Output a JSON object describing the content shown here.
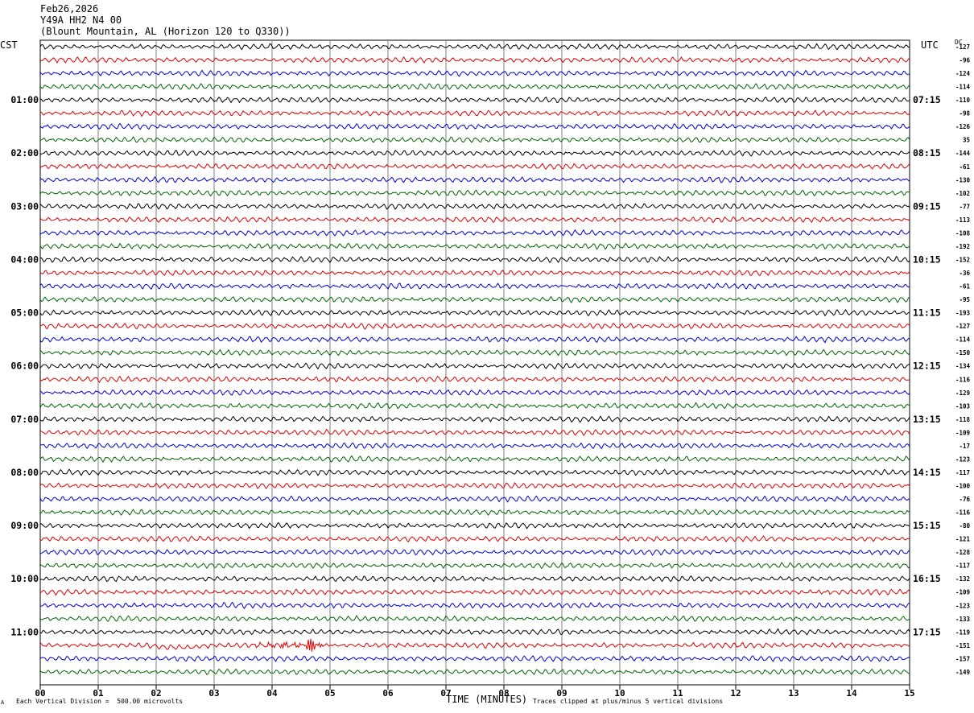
{
  "header": {
    "date": "Feb26,2026",
    "station": "Y49A HH2 N4 00",
    "location": "(Blount Mountain, AL (Horizon 120 to Q330))"
  },
  "left_tz": "CST",
  "right_tz": "UTC",
  "dc_label": "DC",
  "footer": {
    "scale": "Each Vertical Division =  500.00 microvolts",
    "xlabel": "TIME (MINUTES)",
    "clip": "Traces clipped at plus/minus 5 vertical divisions",
    "corner_mark": "A"
  },
  "colors": {
    "trace_cycle": [
      "#000000",
      "#dd0000",
      "#0000cc",
      "#006600"
    ],
    "grid": "#808080"
  },
  "chart_data": {
    "type": "line",
    "title": "",
    "xlabel": "TIME (MINUTES)",
    "xlim": [
      0,
      15
    ],
    "x_ticks": [
      "00",
      "01",
      "02",
      "03",
      "04",
      "05",
      "06",
      "07",
      "08",
      "09",
      "10",
      "11",
      "12",
      "13",
      "14",
      "15"
    ],
    "row_count": 48,
    "left_hour_labels": [
      "01:00",
      "02:00",
      "03:00",
      "04:00",
      "05:00",
      "06:00",
      "07:00",
      "08:00",
      "09:00",
      "10:00",
      "11:00"
    ],
    "right_hour_labels": [
      "07:15",
      "08:15",
      "09:15",
      "10:15",
      "11:15",
      "12:15",
      "13:15",
      "14:15",
      "15:15",
      "16:15",
      "17:15"
    ],
    "dc_offsets": [
      "-127",
      "-96",
      "-124",
      "-114",
      "-110",
      "-98",
      "-126",
      "35",
      "-144",
      "-61",
      "-130",
      "-102",
      "-77",
      "-113",
      "-108",
      "-192",
      "-152",
      "-36",
      "-61",
      "-95",
      "-193",
      "-127",
      "-114",
      "-150",
      "-134",
      "-116",
      "-129",
      "-103",
      "-118",
      "-109",
      "-17",
      "-123",
      "-117",
      "-100",
      "-76",
      "-116",
      "-80",
      "-121",
      "-128",
      "-117",
      "-132",
      "-109",
      "-123",
      "-133",
      "-119",
      "-151",
      "-157",
      "-149"
    ],
    "events": [
      {
        "row": 45,
        "start_min": 3.6,
        "peak_min": 4.7,
        "end_min": 5.3,
        "amplitude_divisions": 1.2
      }
    ]
  }
}
